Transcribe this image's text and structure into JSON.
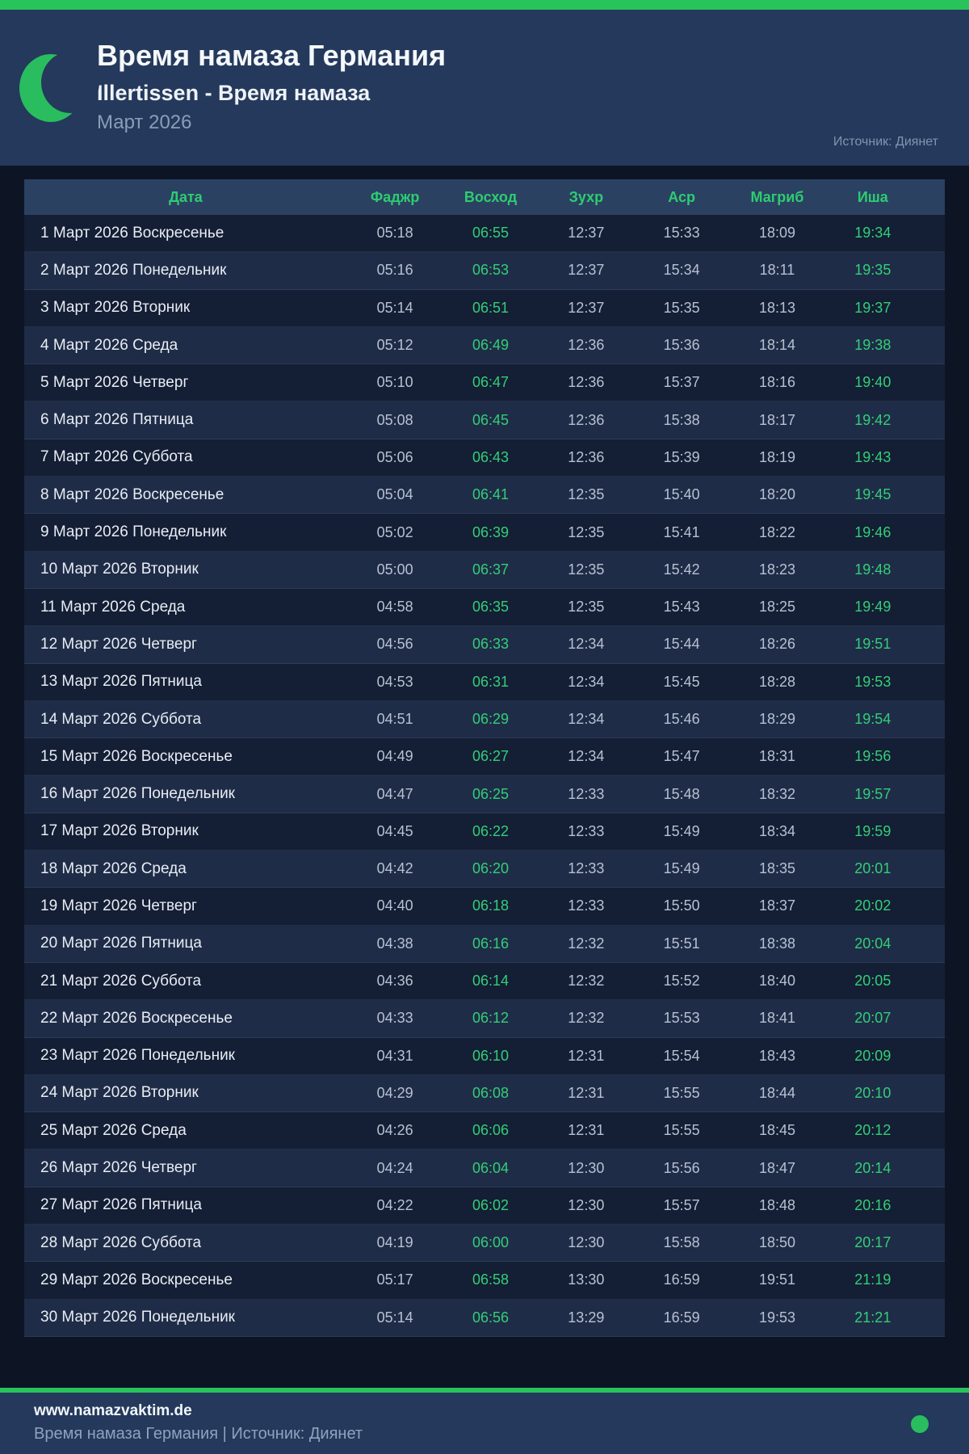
{
  "colors": {
    "bar_green": "#29c35c",
    "text_green": "#2ecc71",
    "time_green": "#32cf77",
    "header_bg": "#24395b",
    "page_bg": "#0d1525",
    "table_header_bg": "#2a4162",
    "row_odd_bg": "#141e34",
    "row_even_bg": "#1f2c47"
  },
  "header": {
    "moon_icon": "crescent-moon-icon",
    "title": "Время намаза Германия",
    "subtitle": "Illertissen - Время намаза",
    "period": "Март 2026",
    "source": "Источник: Диянет"
  },
  "table": {
    "columns": [
      "Дата",
      "Фаджр",
      "Восход",
      "Зухр",
      "Аср",
      "Магриб",
      "Иша"
    ],
    "column_keys": [
      "date",
      "fajr",
      "sunrise",
      "dhuhr",
      "asr",
      "maghrib",
      "isha"
    ],
    "green_time_columns": [
      1,
      5
    ],
    "rows": [
      [
        "1 Март 2026 Воскресенье",
        "05:18",
        "06:55",
        "12:37",
        "15:33",
        "18:09",
        "19:34"
      ],
      [
        "2 Март 2026 Понедельник",
        "05:16",
        "06:53",
        "12:37",
        "15:34",
        "18:11",
        "19:35"
      ],
      [
        "3 Март 2026 Вторник",
        "05:14",
        "06:51",
        "12:37",
        "15:35",
        "18:13",
        "19:37"
      ],
      [
        "4 Март 2026 Среда",
        "05:12",
        "06:49",
        "12:36",
        "15:36",
        "18:14",
        "19:38"
      ],
      [
        "5 Март 2026 Четверг",
        "05:10",
        "06:47",
        "12:36",
        "15:37",
        "18:16",
        "19:40"
      ],
      [
        "6 Март 2026 Пятница",
        "05:08",
        "06:45",
        "12:36",
        "15:38",
        "18:17",
        "19:42"
      ],
      [
        "7 Март 2026 Суббота",
        "05:06",
        "06:43",
        "12:36",
        "15:39",
        "18:19",
        "19:43"
      ],
      [
        "8 Март 2026 Воскресенье",
        "05:04",
        "06:41",
        "12:35",
        "15:40",
        "18:20",
        "19:45"
      ],
      [
        "9 Март 2026 Понедельник",
        "05:02",
        "06:39",
        "12:35",
        "15:41",
        "18:22",
        "19:46"
      ],
      [
        "10 Март 2026 Вторник",
        "05:00",
        "06:37",
        "12:35",
        "15:42",
        "18:23",
        "19:48"
      ],
      [
        "11 Март 2026 Среда",
        "04:58",
        "06:35",
        "12:35",
        "15:43",
        "18:25",
        "19:49"
      ],
      [
        "12 Март 2026 Четверг",
        "04:56",
        "06:33",
        "12:34",
        "15:44",
        "18:26",
        "19:51"
      ],
      [
        "13 Март 2026 Пятница",
        "04:53",
        "06:31",
        "12:34",
        "15:45",
        "18:28",
        "19:53"
      ],
      [
        "14 Март 2026 Суббота",
        "04:51",
        "06:29",
        "12:34",
        "15:46",
        "18:29",
        "19:54"
      ],
      [
        "15 Март 2026 Воскресенье",
        "04:49",
        "06:27",
        "12:34",
        "15:47",
        "18:31",
        "19:56"
      ],
      [
        "16 Март 2026 Понедельник",
        "04:47",
        "06:25",
        "12:33",
        "15:48",
        "18:32",
        "19:57"
      ],
      [
        "17 Март 2026 Вторник",
        "04:45",
        "06:22",
        "12:33",
        "15:49",
        "18:34",
        "19:59"
      ],
      [
        "18 Март 2026 Среда",
        "04:42",
        "06:20",
        "12:33",
        "15:49",
        "18:35",
        "20:01"
      ],
      [
        "19 Март 2026 Четверг",
        "04:40",
        "06:18",
        "12:33",
        "15:50",
        "18:37",
        "20:02"
      ],
      [
        "20 Март 2026 Пятница",
        "04:38",
        "06:16",
        "12:32",
        "15:51",
        "18:38",
        "20:04"
      ],
      [
        "21 Март 2026 Суббота",
        "04:36",
        "06:14",
        "12:32",
        "15:52",
        "18:40",
        "20:05"
      ],
      [
        "22 Март 2026 Воскресенье",
        "04:33",
        "06:12",
        "12:32",
        "15:53",
        "18:41",
        "20:07"
      ],
      [
        "23 Март 2026 Понедельник",
        "04:31",
        "06:10",
        "12:31",
        "15:54",
        "18:43",
        "20:09"
      ],
      [
        "24 Март 2026 Вторник",
        "04:29",
        "06:08",
        "12:31",
        "15:55",
        "18:44",
        "20:10"
      ],
      [
        "25 Март 2026 Среда",
        "04:26",
        "06:06",
        "12:31",
        "15:55",
        "18:45",
        "20:12"
      ],
      [
        "26 Март 2026 Четверг",
        "04:24",
        "06:04",
        "12:30",
        "15:56",
        "18:47",
        "20:14"
      ],
      [
        "27 Март 2026 Пятница",
        "04:22",
        "06:02",
        "12:30",
        "15:57",
        "18:48",
        "20:16"
      ],
      [
        "28 Март 2026 Суббота",
        "04:19",
        "06:00",
        "12:30",
        "15:58",
        "18:50",
        "20:17"
      ],
      [
        "29 Март 2026 Воскресенье",
        "05:17",
        "06:58",
        "13:30",
        "16:59",
        "19:51",
        "21:19"
      ],
      [
        "30 Март 2026 Понедельник",
        "05:14",
        "06:56",
        "13:29",
        "16:59",
        "19:53",
        "21:21"
      ]
    ]
  },
  "footer": {
    "website": "www.namazvaktim.de",
    "tagline": "Время намаза Германия | Источник: Диянет"
  }
}
